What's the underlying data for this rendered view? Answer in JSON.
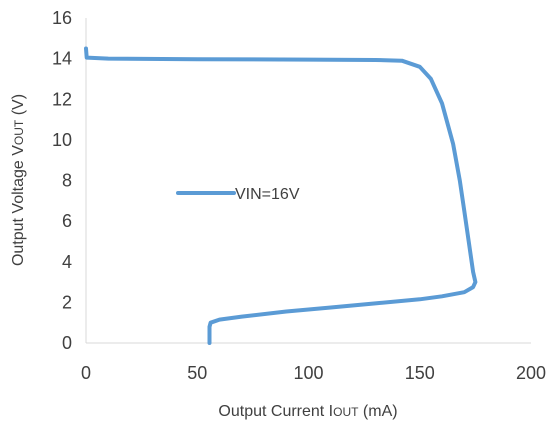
{
  "chart_data": {
    "type": "line",
    "title": "",
    "xlabel": "Output Current I",
    "xlabel_sub": "OUT",
    "xlabel_tail": " (mA)",
    "ylabel": "Output Voltage V",
    "ylabel_sub": "OUT",
    "ylabel_tail": " (V)",
    "xlim": [
      0,
      200
    ],
    "ylim": [
      0,
      16
    ],
    "xticks": [
      0,
      50,
      100,
      150,
      200
    ],
    "yticks": [
      0,
      2,
      4,
      6,
      8,
      10,
      12,
      14,
      16
    ],
    "grid": false,
    "legend_position": "center-left",
    "series": [
      {
        "name": "VIN=16V",
        "color": "#5b9bd5",
        "points": [
          [
            0,
            14.5
          ],
          [
            0.3,
            14.05
          ],
          [
            10,
            14.0
          ],
          [
            50,
            13.97
          ],
          [
            100,
            13.95
          ],
          [
            130,
            13.93
          ],
          [
            142,
            13.9
          ],
          [
            150,
            13.6
          ],
          [
            155,
            13.0
          ],
          [
            160,
            11.8
          ],
          [
            165,
            9.8
          ],
          [
            168,
            8.0
          ],
          [
            170,
            6.5
          ],
          [
            172,
            5.0
          ],
          [
            174,
            3.5
          ],
          [
            175,
            3.0
          ],
          [
            174,
            2.75
          ],
          [
            170,
            2.5
          ],
          [
            160,
            2.3
          ],
          [
            150,
            2.15
          ],
          [
            130,
            1.95
          ],
          [
            110,
            1.75
          ],
          [
            90,
            1.55
          ],
          [
            70,
            1.3
          ],
          [
            60,
            1.15
          ],
          [
            56,
            1.0
          ],
          [
            55.5,
            0.8
          ],
          [
            55.5,
            0.0
          ]
        ]
      }
    ]
  }
}
